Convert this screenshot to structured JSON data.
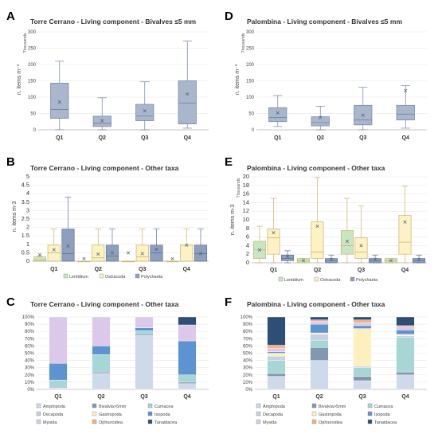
{
  "letters": [
    "A",
    "B",
    "C",
    "D",
    "E",
    "F"
  ],
  "chart_data": [
    {
      "type": "box",
      "title": "Torre Cerrano - Living component - Bivalves ≤5 mm",
      "ylabel": "n. items m⁻³",
      "yunit_note": "Thousands",
      "ylim": [
        0,
        300
      ],
      "yticks": [
        0,
        50,
        100,
        150,
        200,
        250,
        300
      ],
      "categories": [
        "Q1",
        "Q2",
        "Q3",
        "Q4"
      ],
      "color": "#a9b6cb",
      "boxes": [
        {
          "min": 0,
          "q1": 35,
          "median": 62,
          "q3": 143,
          "max": 210,
          "mean": 85
        },
        {
          "min": 0,
          "q1": 10,
          "median": 20,
          "q3": 42,
          "max": 98,
          "mean": 28
        },
        {
          "min": 0,
          "q1": 28,
          "median": 42,
          "q3": 78,
          "max": 147,
          "mean": 58
        },
        {
          "min": 5,
          "q1": 18,
          "median": 82,
          "q3": 150,
          "max": 272,
          "mean": 110
        }
      ]
    },
    {
      "type": "box",
      "title": "Torre Cerrano - Living component - Other taxa",
      "ylabel": "n. items m-3",
      "ylim": [
        0,
        5
      ],
      "yticks": [
        0,
        0.5,
        1,
        1.5,
        2,
        2.5,
        3,
        3.5,
        4,
        4.5,
        5
      ],
      "categories": [
        "Q1",
        "Q2",
        "Q3",
        "Q4"
      ],
      "legend": [
        "Lentidium",
        "Ostracoda",
        "Polychaeta"
      ],
      "colors": [
        "#c9e6c4",
        "#fdf2c4",
        "#8d9fbd"
      ],
      "boxes": [
        [
          {
            "min": 0,
            "q1": 0,
            "median": 0.05,
            "q3": 0.25,
            "max": 0.3,
            "mean": 0.38
          },
          {
            "min": 0,
            "q1": 0,
            "median": 0.5,
            "q3": 0.95,
            "max": 1.9,
            "mean": 0.68
          },
          {
            "min": 0,
            "q1": 0,
            "median": 0.45,
            "q3": 1.9,
            "max": 3.8,
            "mean": 0.9
          }
        ],
        [
          {
            "min": 0,
            "q1": 0,
            "median": 0,
            "q3": 0,
            "max": 0,
            "mean": 0.15
          },
          {
            "min": 0,
            "q1": 0,
            "median": 0.2,
            "q3": 0.95,
            "max": 1.9,
            "mean": 0.42
          },
          {
            "min": 0,
            "q1": 0,
            "median": 0.3,
            "q3": 0.95,
            "max": 1.9,
            "mean": 0.5
          }
        ],
        [
          {
            "min": 0,
            "q1": 0,
            "median": 0,
            "q3": 0,
            "max": 0,
            "mean": 0.5
          },
          {
            "min": 0,
            "q1": 0,
            "median": 0.25,
            "q3": 0.95,
            "max": 1.9,
            "mean": 0.45
          },
          {
            "min": 0,
            "q1": 0,
            "median": 0.5,
            "q3": 0.95,
            "max": 1.9,
            "mean": 0.7
          }
        ],
        [
          {
            "min": 0,
            "q1": 0,
            "median": 0,
            "q3": 0,
            "max": 0,
            "mean": 0.15
          },
          {
            "min": 0,
            "q1": 0,
            "median": 0.95,
            "q3": 0.95,
            "max": 1.9,
            "mean": 0.95
          },
          {
            "min": 0,
            "q1": 0,
            "median": 0.45,
            "q3": 0.95,
            "max": 1.9,
            "mean": 0.45
          }
        ]
      ]
    },
    {
      "type": "stacked-bar",
      "title": "Torre Cerrano - Living component - Other taxa",
      "ylim": [
        0,
        100
      ],
      "yticks": [
        "0%",
        "10%",
        "20%",
        "30%",
        "40%",
        "50%",
        "60%",
        "70%",
        "80%",
        "90%",
        "100%"
      ],
      "categories": [
        "Q1",
        "Q2",
        "Q3",
        "Q4"
      ],
      "series": [
        {
          "name": "Amphipoda",
          "color": "#cfd9ec",
          "values": [
            2,
            22,
            75,
            8
          ]
        },
        {
          "name": "Bivalvia>5mm",
          "color": "#8497b0",
          "values": [
            1,
            2,
            2,
            2
          ]
        },
        {
          "name": "Cumacea",
          "color": "#a6d7d6",
          "values": [
            10,
            24,
            4,
            10
          ]
        },
        {
          "name": "Decapoda",
          "color": "#c7d1df",
          "values": [
            0,
            0,
            0,
            0
          ]
        },
        {
          "name": "Gastropoda",
          "color": "#fdf0bc",
          "values": [
            0,
            0,
            0,
            0
          ]
        },
        {
          "name": "Isopoda",
          "color": "#5d93d1",
          "values": [
            23,
            12,
            4,
            47
          ]
        },
        {
          "name": "Mysida",
          "color": "#dcc8e8",
          "values": [
            64,
            40,
            15,
            22
          ]
        },
        {
          "name": "Ophiuroidea",
          "color": "#f4b183",
          "values": [
            0,
            0,
            0,
            0
          ]
        },
        {
          "name": "Tanaidacea",
          "color": "#2e4f75",
          "values": [
            0,
            0,
            0,
            11
          ]
        }
      ]
    },
    {
      "type": "box",
      "title": "Palombina - Living component - Bivalves ≤5 mm",
      "ylabel": "n. items m⁻³",
      "yunit_note": "Thousands",
      "ylim": [
        0,
        300
      ],
      "yticks": [
        0,
        50,
        100,
        150,
        200,
        250,
        300
      ],
      "categories": [
        "Q1",
        "Q2",
        "Q3",
        "Q4"
      ],
      "color": "#a9b6cb",
      "boxes": [
        {
          "min": 10,
          "q1": 25,
          "median": 38,
          "q3": 68,
          "max": 105,
          "mean": 52
        },
        {
          "min": 0,
          "q1": 12,
          "median": 22,
          "q3": 40,
          "max": 72,
          "mean": 38
        },
        {
          "min": 0,
          "q1": 15,
          "median": 30,
          "q3": 75,
          "max": 130,
          "mean": 45
        },
        {
          "min": 5,
          "q1": 30,
          "median": 48,
          "q3": 75,
          "max": 135,
          "mean": 120
        }
      ]
    },
    {
      "type": "box",
      "title": "Palombina - Living component - Other taxa",
      "ylabel": "n. items m-3",
      "yunit_note": "Thousands",
      "ylim": [
        0,
        20
      ],
      "yticks": [
        0,
        2,
        4,
        6,
        8,
        10,
        12,
        14,
        16,
        18,
        20
      ],
      "categories": [
        "Q1",
        "Q2",
        "Q3",
        "Q4"
      ],
      "legend": [
        "Lentidium",
        "Ostracoda",
        "Polychaeta"
      ],
      "colors": [
        "#c9e6c4",
        "#fdf2c4",
        "#8d9fbd"
      ],
      "boxes": [
        [
          {
            "min": 0,
            "q1": 1,
            "median": 3,
            "q3": 5,
            "max": 8.5,
            "mean": 3
          },
          {
            "min": 0,
            "q1": 2,
            "median": 5.8,
            "q3": 7.8,
            "max": 15,
            "mean": 7
          },
          {
            "min": 0,
            "q1": 0.5,
            "median": 1,
            "q3": 1.8,
            "max": 2.8,
            "mean": 1.5
          }
        ],
        [
          {
            "min": 0,
            "q1": 0,
            "median": 0.5,
            "q3": 1,
            "max": 1,
            "mean": 0.5
          },
          {
            "min": 0,
            "q1": 1,
            "median": 2.5,
            "q3": 9.5,
            "max": 19.8,
            "mean": 8.5
          },
          {
            "min": 0,
            "q1": 0,
            "median": 0.5,
            "q3": 1,
            "max": 1.8,
            "mean": 0.8
          }
        ],
        [
          {
            "min": 0,
            "q1": 2,
            "median": 4,
            "q3": 7.5,
            "max": 15,
            "mean": 5
          },
          {
            "min": 0,
            "q1": 1,
            "median": 2.5,
            "q3": 5.8,
            "max": 13.2,
            "mean": 4
          },
          {
            "min": 0,
            "q1": 0,
            "median": 0.5,
            "q3": 1,
            "max": 1.8,
            "mean": 0.8
          }
        ],
        [
          {
            "min": 0,
            "q1": 0,
            "median": 0.5,
            "q3": 1,
            "max": 1,
            "mean": 0.5
          },
          {
            "min": 0,
            "q1": 2,
            "median": 4.8,
            "q3": 11,
            "max": 17.8,
            "mean": 9.5
          },
          {
            "min": 0,
            "q1": 0,
            "median": 0.5,
            "q3": 1,
            "max": 1.8,
            "mean": 0.8
          }
        ]
      ]
    },
    {
      "type": "stacked-bar",
      "title": "Palombina - Living component - Other taxa",
      "ylim": [
        0,
        100
      ],
      "yticks": [
        "0%",
        "10%",
        "20%",
        "30%",
        "40%",
        "50%",
        "60%",
        "70%",
        "80%",
        "90%",
        "100%"
      ],
      "categories": [
        "Q1",
        "Q2",
        "Q3",
        "Q4"
      ],
      "series": [
        {
          "name": "Amphipoda",
          "color": "#cfd9ec",
          "values": [
            18,
            40,
            12,
            20
          ]
        },
        {
          "name": "Bivalvia>5mm",
          "color": "#8497b0",
          "values": [
            4,
            18,
            6,
            4
          ]
        },
        {
          "name": "Cumacea",
          "color": "#a6d7d6",
          "values": [
            18,
            10,
            12,
            48
          ]
        },
        {
          "name": "Decapoda",
          "color": "#c7d1df",
          "values": [
            6,
            8,
            2,
            2
          ]
        },
        {
          "name": "Gastropoda",
          "color": "#fdf0bc",
          "values": [
            4,
            2,
            52,
            2
          ]
        },
        {
          "name": "Isopoda",
          "color": "#5d93d1",
          "values": [
            2,
            12,
            4,
            6
          ]
        },
        {
          "name": "Mysida",
          "color": "#dcc8e8",
          "values": [
            5,
            4,
            4,
            4
          ]
        },
        {
          "name": "Ophiuroidea",
          "color": "#f4b183",
          "values": [
            4,
            2,
            4,
            2
          ]
        },
        {
          "name": "Tanaidacea",
          "color": "#2e4f75",
          "values": [
            39,
            4,
            4,
            12
          ]
        }
      ]
    }
  ]
}
